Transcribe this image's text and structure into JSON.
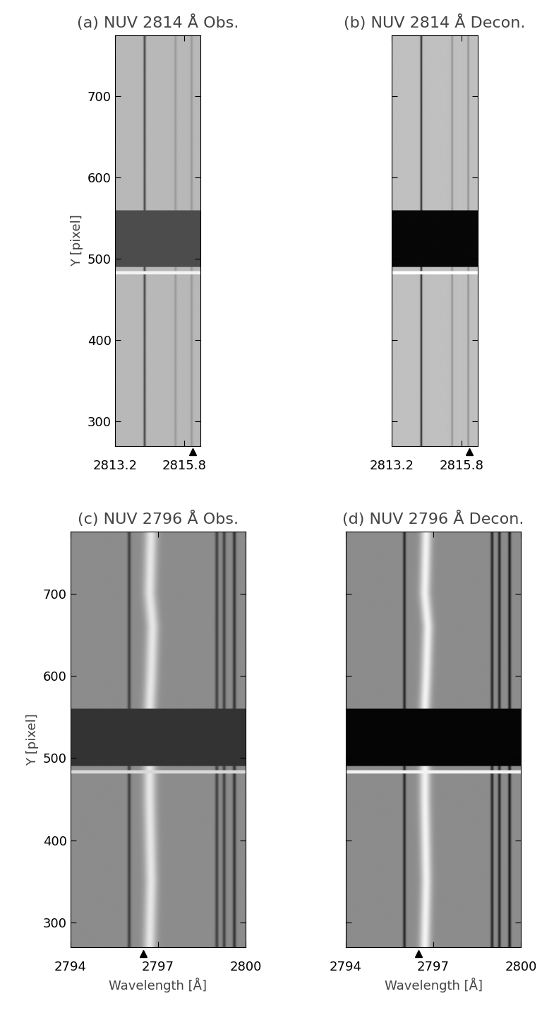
{
  "chart_data": [
    {
      "type": "image",
      "title": "(a) NUV 2814 Å Obs.",
      "xlim": [
        2813.2,
        2816.4
      ],
      "xticks": [
        2813.2,
        2815.8
      ],
      "ylim": [
        270,
        775
      ],
      "yticks": [
        300,
        400,
        500,
        600,
        700
      ],
      "ylabel": "Y [pixel]",
      "tick_labels": true,
      "marker_wavelength": 2816.1,
      "background": 0.72,
      "absorption_lines": [
        {
          "wavelength": 2814.3,
          "depth": 0.45,
          "width": 0.03
        },
        {
          "wavelength": 2815.45,
          "depth": 0.12,
          "width": 0.03
        },
        {
          "wavelength": 2816.05,
          "depth": 0.12,
          "width": 0.03
        }
      ],
      "dark_band": {
        "y": [
          490,
          560
        ],
        "level": 0.3
      },
      "bright_row": {
        "y": 483,
        "level": 0.95
      }
    },
    {
      "type": "image",
      "title": "(b) NUV 2814 Å Decon.",
      "xlim": [
        2813.2,
        2816.4
      ],
      "xticks": [
        2813.2,
        2815.8
      ],
      "ylim": [
        270,
        775
      ],
      "yticks": [
        300,
        400,
        500,
        600,
        700
      ],
      "tick_labels": "x",
      "marker_wavelength": 2816.1,
      "background": 0.75,
      "absorption_lines": [
        {
          "wavelength": 2814.3,
          "depth": 0.6,
          "width": 0.025
        },
        {
          "wavelength": 2815.45,
          "depth": 0.18,
          "width": 0.025
        },
        {
          "wavelength": 2816.05,
          "depth": 0.18,
          "width": 0.025
        }
      ],
      "dark_band": {
        "y": [
          490,
          560
        ],
        "level": 0.03
      },
      "bright_row": {
        "y": 483,
        "level": 1.0
      }
    },
    {
      "type": "image",
      "title": "(c) NUV 2796 Å Obs.",
      "xlim": [
        2794,
        2800
      ],
      "xticks": [
        2794,
        2797,
        2800
      ],
      "ylim": [
        270,
        775
      ],
      "yticks": [
        300,
        400,
        500,
        600,
        700
      ],
      "xlabel": "Wavelength [Å]",
      "ylabel": "Y [pixel]",
      "tick_labels": true,
      "marker_wavelength": 2796.5,
      "background": 0.55,
      "absorption_lines": [
        {
          "wavelength": 2796.0,
          "depth": 0.3,
          "width": 0.04
        },
        {
          "wavelength": 2799.0,
          "depth": 0.3,
          "width": 0.04
        },
        {
          "wavelength": 2799.25,
          "depth": 0.3,
          "width": 0.04
        },
        {
          "wavelength": 2799.6,
          "depth": 0.35,
          "width": 0.04
        }
      ],
      "emission": {
        "y": [
          270,
          350,
          450,
          560,
          600,
          660,
          700,
          775
        ],
        "center": [
          2796.7,
          2796.75,
          2796.7,
          2796.7,
          2796.75,
          2796.8,
          2796.7,
          2796.75
        ],
        "width": 0.15,
        "peak": 0.9
      },
      "dark_band": {
        "y": [
          490,
          560
        ],
        "level": 0.2
      },
      "bright_row": {
        "y": 483,
        "level": 0.85
      }
    },
    {
      "type": "image",
      "title": "(d) NUV 2796 Å Decon.",
      "xlim": [
        2794,
        2800
      ],
      "xticks": [
        2794,
        2797,
        2800
      ],
      "ylim": [
        270,
        775
      ],
      "yticks": [
        300,
        400,
        500,
        600,
        700
      ],
      "xlabel": "Wavelength [Å]",
      "tick_labels": "x",
      "marker_wavelength": 2796.5,
      "background": 0.55,
      "absorption_lines": [
        {
          "wavelength": 2796.0,
          "depth": 0.4,
          "width": 0.035
        },
        {
          "wavelength": 2799.0,
          "depth": 0.4,
          "width": 0.035
        },
        {
          "wavelength": 2799.25,
          "depth": 0.4,
          "width": 0.035
        },
        {
          "wavelength": 2799.6,
          "depth": 0.45,
          "width": 0.035
        }
      ],
      "emission": {
        "y": [
          270,
          350,
          450,
          560,
          600,
          660,
          700,
          775
        ],
        "center": [
          2796.7,
          2796.75,
          2796.7,
          2796.7,
          2796.75,
          2796.8,
          2796.7,
          2796.75
        ],
        "width": 0.13,
        "peak": 0.95
      },
      "dark_band": {
        "y": [
          490,
          560
        ],
        "level": 0.02
      },
      "bright_row": {
        "y": 483,
        "level": 0.95
      }
    }
  ]
}
